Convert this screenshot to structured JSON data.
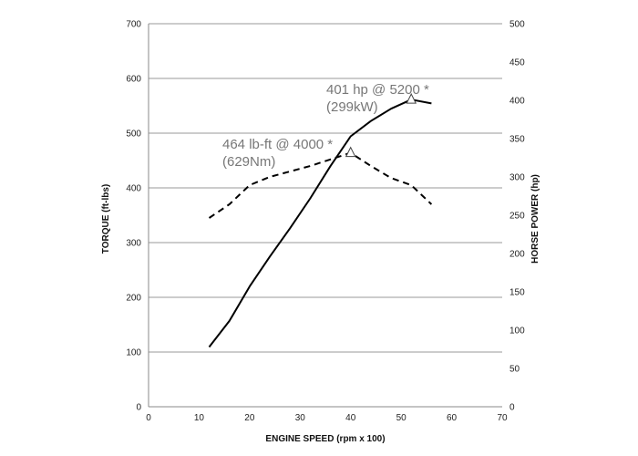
{
  "chart_data": {
    "type": "line",
    "xlabel": "ENGINE SPEED (rpm x 100)",
    "ylabel_left": "TORQUE (ft-lbs)",
    "ylabel_right": "HORSE POWER (hp)",
    "xlim": [
      0,
      70
    ],
    "ylim_left": [
      0,
      700
    ],
    "ylim_right": [
      0,
      500
    ],
    "x_ticks": [
      0,
      10,
      20,
      30,
      40,
      50,
      60,
      70
    ],
    "y_ticks_left": [
      0,
      100,
      200,
      300,
      400,
      500,
      600,
      700
    ],
    "y_ticks_right": [
      0,
      50,
      100,
      150,
      200,
      250,
      300,
      350,
      400,
      450,
      500
    ],
    "grid": "horizontal",
    "series": [
      {
        "axis": "right",
        "style": "solid",
        "color": "#000000",
        "x": [
          12,
          16,
          20,
          24,
          28,
          32,
          36,
          40,
          44,
          48,
          52,
          56
        ],
        "y": [
          78,
          112,
          157,
          196,
          233,
          272,
          314,
          353,
          373,
          389,
          401,
          396
        ]
      },
      {
        "axis": "left",
        "style": "dashed",
        "color": "#000000",
        "x": [
          12,
          16,
          20,
          24,
          28,
          32,
          36,
          40,
          44,
          48,
          52,
          56
        ],
        "y": [
          345,
          370,
          405,
          420,
          430,
          440,
          452,
          464,
          440,
          418,
          405,
          370
        ]
      }
    ],
    "markers": [
      {
        "axis": "right",
        "x": 52,
        "y": 401,
        "shape": "triangle"
      },
      {
        "axis": "left",
        "x": 40,
        "y": 464,
        "shape": "triangle"
      }
    ],
    "annotations": [
      {
        "lines": [
          "401 hp @ 5200 *",
          "(299kW)"
        ]
      },
      {
        "lines": [
          "464 lb-ft @ 4000 *",
          "(629Nm)"
        ]
      }
    ]
  }
}
